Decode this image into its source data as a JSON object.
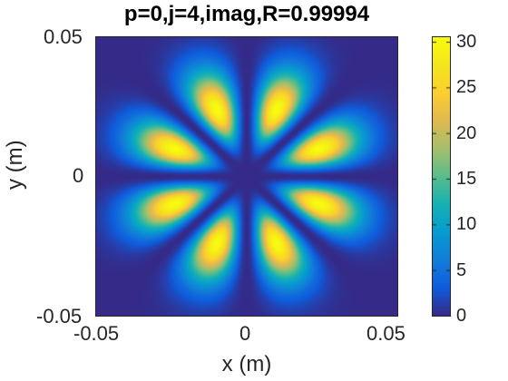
{
  "chart_data": {
    "type": "heatmap",
    "title": "p=0,j=4,imag,R=0.99994",
    "xlabel": "x (m)",
    "ylabel": "y (m)",
    "xlim": [
      -0.05,
      0.05
    ],
    "ylim": [
      -0.05,
      0.05
    ],
    "x_ticks": [
      "-0.05",
      "0",
      "0.05"
    ],
    "y_ticks": [
      "0.05",
      "0",
      "-0.05"
    ],
    "colorbar": {
      "range": [
        0,
        30.5
      ],
      "ticks": [
        "30",
        "25",
        "20",
        "15",
        "10",
        "5",
        "0"
      ],
      "colormap": "parula"
    },
    "pattern": {
      "description_kind": "petal",
      "lobes": 8,
      "peak_value": 30.5,
      "peak_radius_m": 0.026
    }
  }
}
